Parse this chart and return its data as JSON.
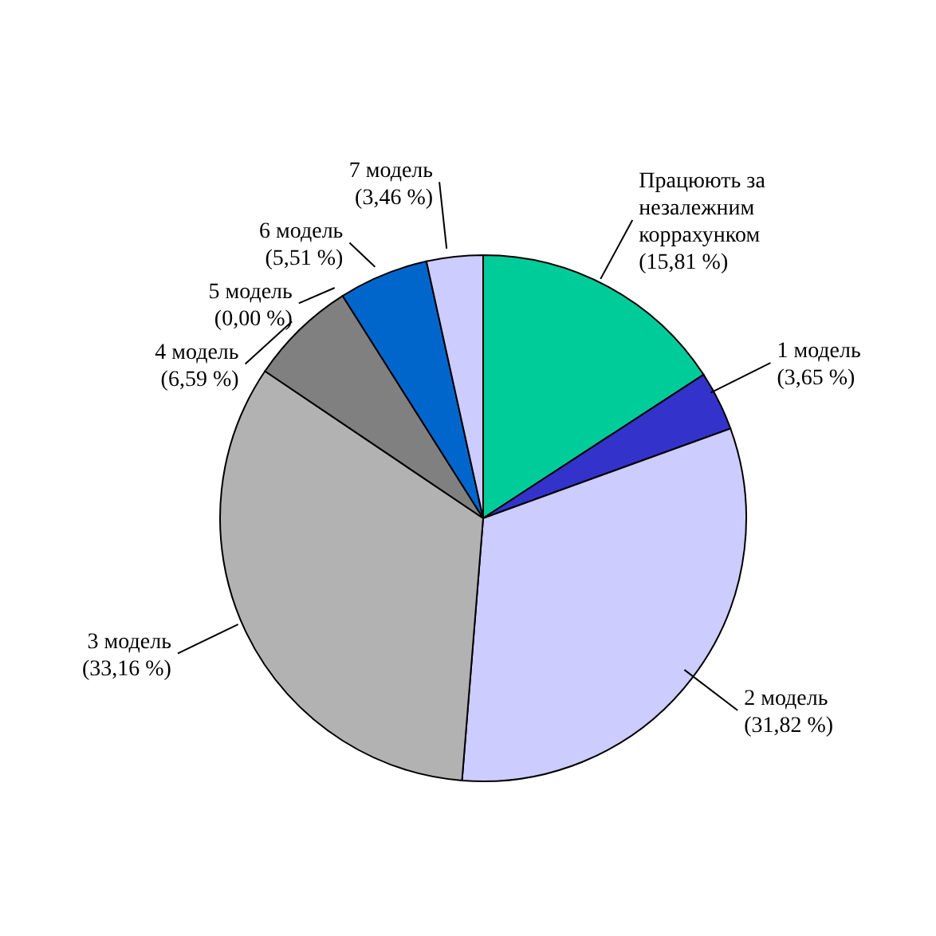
{
  "chart_data": {
    "type": "pie",
    "categories": [
      "Працюють за незалежним коррахунком",
      "1 модель",
      "2 модель",
      "3 модель",
      "4 модель",
      "5 модель",
      "6 модель",
      "7 модель"
    ],
    "values": [
      15.81,
      3.65,
      31.82,
      33.16,
      6.59,
      0.0,
      5.51,
      3.46
    ],
    "value_labels": [
      "(15,81 %)",
      "(3,65 %)",
      "(31,82 %)",
      "(33,16 %)",
      "(6,59 %)",
      "(0,00 %)",
      "(5,51 %)",
      "(3,46 %)"
    ],
    "colors": [
      "#00cc99",
      "#3333cc",
      "#ccccff",
      "#b2b2b2",
      "#808080",
      "#ffffff",
      "#0066cc",
      "#ccccff"
    ]
  }
}
